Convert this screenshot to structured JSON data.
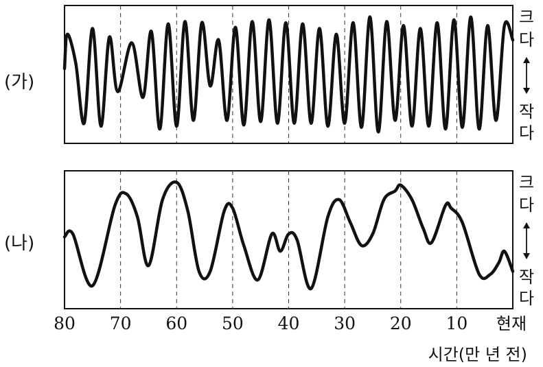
{
  "chart_data": [
    {
      "type": "line",
      "panel_label": "(가)",
      "scale_top": "크다",
      "scale_bottom": "작다",
      "series": [
        {
          "x": [
            80,
            79.5,
            78,
            76.5,
            75,
            73.5,
            72,
            70.5,
            68,
            66,
            64.5,
            63,
            61.5,
            60,
            58.5,
            57,
            55.5,
            54,
            52.5,
            51,
            49.5,
            48,
            46.5,
            45,
            43.5,
            42,
            40.5,
            39,
            37.5,
            36,
            34.5,
            33,
            31.5,
            30,
            28.5,
            27,
            25.5,
            24,
            22.5,
            21,
            19.5,
            18,
            16.5,
            15,
            13.5,
            12,
            10.5,
            9,
            7.5,
            6,
            4.5,
            3,
            1.5,
            0
          ],
          "values": [
            0.1,
            0.7,
            0.2,
            -0.85,
            0.8,
            -0.9,
            0.65,
            -0.3,
            0.55,
            -0.4,
            0.75,
            -0.95,
            0.88,
            -0.9,
            0.92,
            -0.8,
            0.9,
            -0.2,
            0.6,
            -0.8,
            0.82,
            -0.88,
            0.92,
            -0.82,
            0.95,
            -0.85,
            0.9,
            -0.85,
            0.88,
            -0.85,
            0.8,
            -0.9,
            0.7,
            -0.85,
            0.9,
            -0.92,
            1,
            -1,
            0.92,
            -0.8,
            0.85,
            -0.9,
            0.8,
            -0.9,
            0.9,
            -0.95,
            0.95,
            -0.92,
            1,
            -0.95,
            0.85,
            -0.8,
            0.85,
            0.6
          ]
        }
      ],
      "xlim": [
        80,
        0
      ],
      "ylim": [
        -1.2,
        1.2
      ],
      "vertical_gridlines_at": [
        70,
        60,
        50,
        40,
        30,
        20,
        10
      ]
    },
    {
      "type": "line",
      "panel_label": "(나)",
      "scale_top": "크다",
      "scale_bottom": "작다",
      "series": [
        {
          "x": [
            80,
            78.5,
            75,
            71,
            69,
            67,
            65,
            62.5,
            60,
            58,
            56,
            54,
            51.5,
            50,
            48,
            45.5,
            43,
            41.5,
            40,
            38.5,
            36,
            33,
            31,
            29,
            27,
            25,
            23,
            21,
            20,
            18,
            16,
            14.5,
            12,
            11,
            9,
            6,
            4,
            2.5,
            1.5,
            0
          ],
          "values": [
            0.05,
            0.1,
            -0.8,
            0.6,
            0.8,
            0.4,
            -0.45,
            0.7,
            1,
            0.5,
            -0.55,
            -0.55,
            0.5,
            0.55,
            -0.1,
            -0.7,
            0.1,
            -0.2,
            0.1,
            0,
            -0.85,
            0.4,
            0.7,
            0.3,
            -0.1,
            0.1,
            0.7,
            0.85,
            0.95,
            0.7,
            0.2,
            -0.05,
            0.6,
            0.55,
            0.3,
            -0.6,
            -0.6,
            -0.4,
            -0.2,
            -0.55
          ]
        }
      ],
      "xlim": [
        80,
        0
      ],
      "ylim": [
        -1.2,
        1.2
      ],
      "vertical_gridlines_at": [
        70,
        60,
        50,
        40,
        30,
        20,
        10
      ]
    }
  ],
  "x_axis": {
    "ticks": [
      "80",
      "70",
      "60",
      "50",
      "40",
      "30",
      "20",
      "10",
      "현재"
    ],
    "label": "시간(만 년 전)"
  }
}
